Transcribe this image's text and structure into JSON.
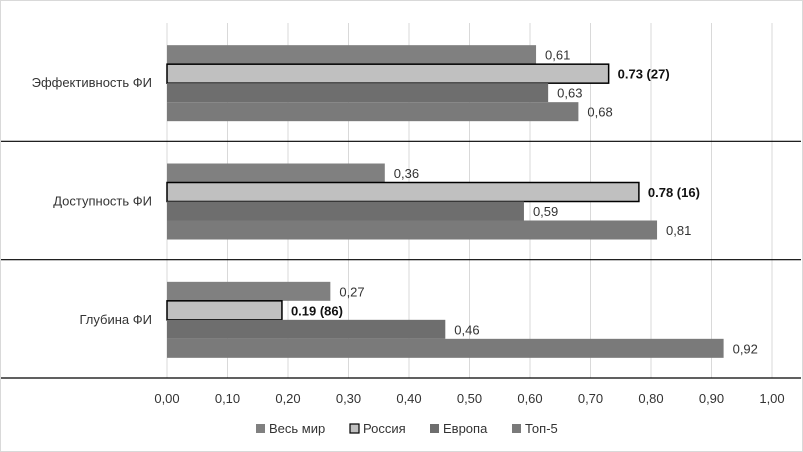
{
  "chart_data": {
    "type": "bar",
    "orientation": "horizontal",
    "categories": [
      "Эффективность ФИ",
      "Доступность ФИ",
      "Глубина ФИ"
    ],
    "series": [
      {
        "name": "Весь мир",
        "values": [
          0.61,
          0.36,
          0.27
        ],
        "labels": [
          "0,61",
          "0,36",
          "0,27"
        ],
        "color": "#808080",
        "bold": false
      },
      {
        "name": "Россия",
        "values": [
          0.73,
          0.78,
          0.19
        ],
        "labels": [
          "0.73 (27)",
          "0.78 (16)",
          "0.19 (86)"
        ],
        "color": "#c0c0c0",
        "bold": true
      },
      {
        "name": "Европа",
        "values": [
          0.63,
          0.59,
          0.46
        ],
        "labels": [
          "0,63",
          "0,59",
          "0,46"
        ],
        "color": "#6e6e6e",
        "bold": false
      },
      {
        "name": "Топ-5",
        "values": [
          0.68,
          0.81,
          0.92
        ],
        "labels": [
          "0,68",
          "0,81",
          "0,92"
        ],
        "color": "#7a7a7a",
        "bold": false
      }
    ],
    "xlim": [
      0,
      1.0
    ],
    "xticks": [
      "0,00",
      "0,10",
      "0,20",
      "0,30",
      "0,40",
      "0,50",
      "0,60",
      "0,70",
      "0,80",
      "0,90",
      "1,00"
    ],
    "grid": true,
    "legend": "bottom",
    "title": "",
    "xlabel": "",
    "ylabel": ""
  }
}
